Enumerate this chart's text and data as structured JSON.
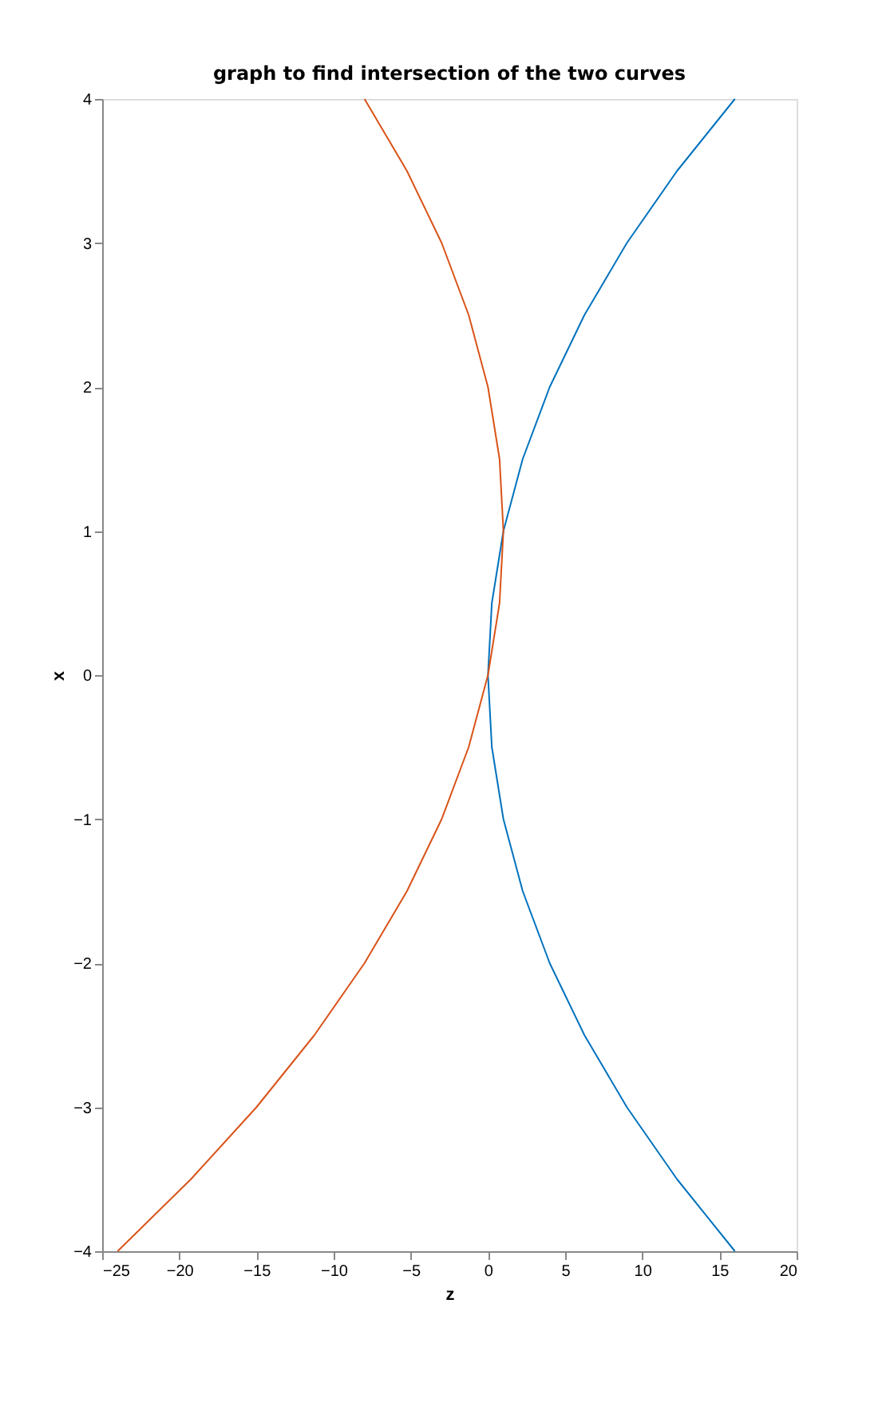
{
  "chart_data": {
    "type": "line",
    "title": "graph to find intersection of the two curves",
    "xlabel": "z",
    "ylabel": "x",
    "xlim": [
      -25,
      20
    ],
    "xticks": [
      -25,
      -20,
      -15,
      -10,
      -5,
      0,
      5,
      10,
      15,
      20
    ],
    "ylim": [
      -4,
      4
    ],
    "yticks": [
      -4,
      -3,
      -2,
      -1,
      0,
      1,
      2,
      3,
      4
    ],
    "grid": false,
    "legend": false,
    "marker": "none",
    "line_style": "solid",
    "series": [
      {
        "color": "#0072bd",
        "x": [
          16,
          12.25,
          9,
          6.25,
          4,
          2.25,
          1,
          0.25,
          0,
          0.25,
          1,
          2.25,
          4,
          6.25,
          9,
          12.25,
          16
        ],
        "values": [
          -4,
          -3.5,
          -3,
          -2.5,
          -2,
          -1.5,
          -1,
          -0.5,
          0,
          0.5,
          1,
          1.5,
          2,
          2.5,
          3,
          3.5,
          4
        ]
      },
      {
        "color": "#d95319",
        "x": [
          -24,
          -19.25,
          -15,
          -11.25,
          -8,
          -5.25,
          -3,
          -1.25,
          0,
          0.75,
          1,
          0.75,
          0,
          -1.25,
          -3,
          -5.25,
          -8
        ],
        "values": [
          -4,
          -3.5,
          -3,
          -2.5,
          -2,
          -1.5,
          -1,
          -0.5,
          0,
          0.5,
          1,
          1.5,
          2,
          2.5,
          3,
          3.5,
          4
        ]
      }
    ]
  }
}
